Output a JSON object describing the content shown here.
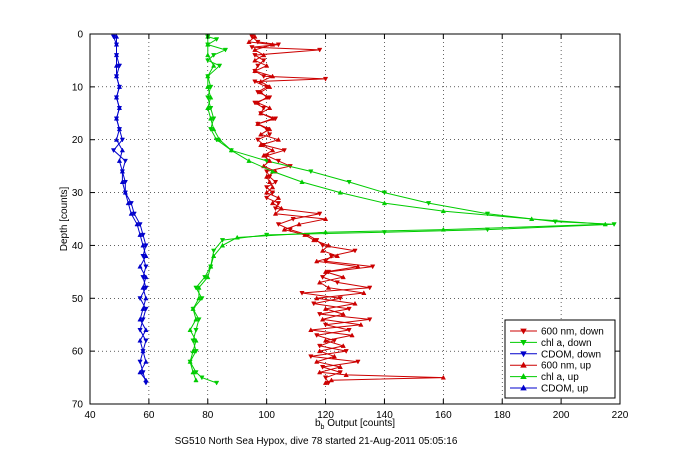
{
  "chart_data": {
    "type": "line",
    "title": "",
    "xlabel": "b_b Output [counts]",
    "xlabel_main": "b",
    "xlabel_sub": "b",
    "xlabel_rest": " Output [counts]",
    "ylabel": "Depth [counts]",
    "caption": "SG510 North Sea Hypox, dive 78 started 21-Aug-2011 05:05:16",
    "xlim": [
      40,
      220
    ],
    "ylim": [
      0,
      70
    ],
    "y_reversed": true,
    "grid": true,
    "legend_position": "bottom-right",
    "x_ticks": [
      "40",
      "60",
      "80",
      "100",
      "120",
      "140",
      "160",
      "180",
      "200",
      "220"
    ],
    "y_ticks": [
      "0",
      "10",
      "20",
      "30",
      "40",
      "50",
      "60",
      "70"
    ],
    "series": [
      {
        "name": "600 nm, down",
        "color": "#cc0000",
        "marker": "triangle-down",
        "points": [
          [
            95,
            0.5
          ],
          [
            97,
            1.5
          ],
          [
            104,
            2
          ],
          [
            95,
            2.5
          ],
          [
            118,
            3
          ],
          [
            96,
            4
          ],
          [
            99,
            5
          ],
          [
            97,
            6
          ],
          [
            96,
            7
          ],
          [
            99,
            8
          ],
          [
            120,
            8.5
          ],
          [
            96,
            9
          ],
          [
            100,
            10
          ],
          [
            97,
            11
          ],
          [
            101,
            12
          ],
          [
            96,
            13
          ],
          [
            99,
            14
          ],
          [
            98,
            15
          ],
          [
            103,
            16
          ],
          [
            97,
            17
          ],
          [
            100,
            18
          ],
          [
            101,
            19
          ],
          [
            97,
            20
          ],
          [
            99,
            21
          ],
          [
            106,
            22
          ],
          [
            100,
            23
          ],
          [
            104,
            24
          ],
          [
            108,
            25
          ],
          [
            100,
            26
          ],
          [
            101,
            27
          ],
          [
            103,
            28
          ],
          [
            100,
            29
          ],
          [
            102,
            30
          ],
          [
            100,
            31
          ],
          [
            104,
            32
          ],
          [
            103,
            33
          ],
          [
            118,
            34
          ],
          [
            109,
            35
          ],
          [
            104,
            36
          ],
          [
            108,
            37
          ],
          [
            114,
            38
          ],
          [
            117,
            39
          ],
          [
            119,
            40
          ],
          [
            130,
            41
          ],
          [
            122,
            42
          ],
          [
            120,
            43
          ],
          [
            136,
            44
          ],
          [
            121,
            45
          ],
          [
            119,
            46
          ],
          [
            124,
            47
          ],
          [
            135,
            48
          ],
          [
            112,
            49
          ],
          [
            125,
            50
          ],
          [
            116,
            51
          ],
          [
            128,
            52
          ],
          [
            118,
            53
          ],
          [
            135,
            54
          ],
          [
            120,
            55
          ],
          [
            128,
            56
          ],
          [
            117,
            57
          ],
          [
            123,
            58
          ],
          [
            118,
            59
          ],
          [
            127,
            60
          ],
          [
            115,
            61
          ],
          [
            131,
            62
          ],
          [
            119,
            63
          ],
          [
            125,
            64
          ],
          [
            120,
            65
          ],
          [
            121,
            66
          ]
        ]
      },
      {
        "name": "chl a, down",
        "color": "#00cc00",
        "marker": "triangle-down",
        "points": [
          [
            80,
            0.5
          ],
          [
            83,
            1
          ],
          [
            80,
            2
          ],
          [
            86,
            3
          ],
          [
            82,
            4
          ],
          [
            80,
            5
          ],
          [
            84,
            6
          ],
          [
            80,
            8
          ],
          [
            81,
            10
          ],
          [
            80,
            12
          ],
          [
            81,
            14
          ],
          [
            82,
            16
          ],
          [
            81,
            18
          ],
          [
            83,
            20
          ],
          [
            88,
            22
          ],
          [
            100,
            24
          ],
          [
            115,
            26
          ],
          [
            128,
            28
          ],
          [
            140,
            30
          ],
          [
            155,
            32
          ],
          [
            175,
            34
          ],
          [
            198,
            35.5
          ],
          [
            218,
            36
          ],
          [
            175,
            37
          ],
          [
            140,
            37.5
          ],
          [
            100,
            38
          ],
          [
            85,
            39
          ],
          [
            82,
            41
          ],
          [
            81,
            44
          ],
          [
            79,
            46
          ],
          [
            76,
            48
          ],
          [
            78,
            50
          ],
          [
            75,
            52
          ],
          [
            77,
            54
          ],
          [
            76,
            56
          ],
          [
            75,
            58
          ],
          [
            76,
            60
          ],
          [
            74,
            62
          ],
          [
            76,
            64
          ],
          [
            78,
            65
          ],
          [
            83,
            66
          ]
        ]
      },
      {
        "name": "CDOM, down",
        "color": "#0000cc",
        "marker": "triangle-down",
        "points": [
          [
            48,
            0.5
          ],
          [
            49,
            2
          ],
          [
            49,
            4
          ],
          [
            50,
            6
          ],
          [
            49,
            8
          ],
          [
            50,
            10
          ],
          [
            49,
            12
          ],
          [
            50,
            14
          ],
          [
            49,
            16
          ],
          [
            50,
            18
          ],
          [
            51,
            20
          ],
          [
            48,
            22
          ],
          [
            52,
            24
          ],
          [
            51,
            26
          ],
          [
            52,
            28
          ],
          [
            52,
            30
          ],
          [
            54,
            32
          ],
          [
            55,
            34
          ],
          [
            57,
            36
          ],
          [
            58,
            38
          ],
          [
            59,
            40
          ],
          [
            58,
            42
          ],
          [
            59,
            44
          ],
          [
            58,
            46
          ],
          [
            59,
            48
          ],
          [
            57,
            50
          ],
          [
            59,
            52
          ],
          [
            58,
            54
          ],
          [
            57,
            56
          ],
          [
            59,
            58
          ],
          [
            58,
            60
          ],
          [
            57,
            62
          ],
          [
            58,
            64
          ],
          [
            59,
            66
          ]
        ]
      },
      {
        "name": "600 nm, up",
        "color": "#cc0000",
        "marker": "triangle-up",
        "points": [
          [
            120,
            66
          ],
          [
            122,
            65.5
          ],
          [
            160,
            65
          ],
          [
            127,
            64.5
          ],
          [
            118,
            64
          ],
          [
            125,
            63
          ],
          [
            117,
            62
          ],
          [
            123,
            61
          ],
          [
            118,
            60
          ],
          [
            126,
            59
          ],
          [
            120,
            58
          ],
          [
            129,
            57
          ],
          [
            115,
            56
          ],
          [
            132,
            55
          ],
          [
            119,
            54
          ],
          [
            126,
            53
          ],
          [
            120,
            52
          ],
          [
            130,
            51
          ],
          [
            117,
            50
          ],
          [
            133,
            49
          ],
          [
            121,
            48
          ],
          [
            118,
            47
          ],
          [
            126,
            46
          ],
          [
            120,
            45
          ],
          [
            131,
            44
          ],
          [
            117,
            43
          ],
          [
            124,
            42
          ],
          [
            119,
            41
          ],
          [
            121,
            40
          ],
          [
            116,
            39
          ],
          [
            113,
            38
          ],
          [
            106,
            37
          ],
          [
            111,
            36
          ],
          [
            120,
            35
          ],
          [
            103,
            34
          ],
          [
            105,
            33
          ],
          [
            102,
            32
          ],
          [
            104,
            31
          ],
          [
            100,
            30
          ],
          [
            102,
            29
          ],
          [
            101,
            28
          ],
          [
            100,
            27
          ],
          [
            103,
            26
          ],
          [
            99,
            25
          ],
          [
            101,
            24
          ],
          [
            99,
            23
          ],
          [
            102,
            22
          ],
          [
            98,
            21
          ],
          [
            104,
            20
          ],
          [
            98,
            19
          ],
          [
            101,
            18
          ],
          [
            97,
            17
          ],
          [
            102,
            16
          ],
          [
            98,
            15
          ],
          [
            101,
            14
          ],
          [
            97,
            13
          ],
          [
            100,
            12
          ],
          [
            98,
            11
          ],
          [
            101,
            10
          ],
          [
            98,
            9
          ],
          [
            102,
            8
          ],
          [
            96,
            7
          ],
          [
            100,
            6
          ],
          [
            96,
            5
          ],
          [
            99,
            4
          ],
          [
            96,
            3
          ],
          [
            102,
            2
          ],
          [
            94,
            1.5
          ],
          [
            96,
            0.5
          ]
        ]
      },
      {
        "name": "chl a, up",
        "color": "#00cc00",
        "marker": "triangle-up",
        "points": [
          [
            76,
            65.5
          ],
          [
            75,
            64
          ],
          [
            74,
            62
          ],
          [
            75,
            60
          ],
          [
            76,
            58
          ],
          [
            74,
            56
          ],
          [
            76,
            54
          ],
          [
            75,
            52
          ],
          [
            77,
            50
          ],
          [
            77,
            48
          ],
          [
            80,
            46
          ],
          [
            81,
            44
          ],
          [
            82,
            42
          ],
          [
            85,
            40
          ],
          [
            90,
            38.5
          ],
          [
            120,
            37.5
          ],
          [
            160,
            37
          ],
          [
            215,
            36
          ],
          [
            190,
            35
          ],
          [
            160,
            33.5
          ],
          [
            140,
            32
          ],
          [
            125,
            30
          ],
          [
            112,
            28
          ],
          [
            102,
            26
          ],
          [
            94,
            24
          ],
          [
            88,
            22
          ],
          [
            84,
            20
          ],
          [
            82,
            18
          ],
          [
            81,
            16
          ],
          [
            80,
            14
          ],
          [
            81,
            12
          ],
          [
            80,
            10
          ],
          [
            80,
            8
          ],
          [
            82,
            6
          ],
          [
            80,
            4
          ],
          [
            80,
            2
          ],
          [
            80,
            0.5
          ]
        ]
      },
      {
        "name": "CDOM, up",
        "color": "#0000cc",
        "marker": "triangle-up",
        "points": [
          [
            59,
            65.5
          ],
          [
            57,
            64
          ],
          [
            59,
            62
          ],
          [
            58,
            60
          ],
          [
            57,
            58
          ],
          [
            59,
            56
          ],
          [
            57,
            54
          ],
          [
            58,
            52
          ],
          [
            59,
            50
          ],
          [
            58,
            48
          ],
          [
            59,
            46
          ],
          [
            57,
            44
          ],
          [
            59,
            42
          ],
          [
            58,
            40
          ],
          [
            57,
            38
          ],
          [
            56,
            36
          ],
          [
            54,
            34
          ],
          [
            53,
            32
          ],
          [
            52,
            30
          ],
          [
            51,
            28
          ],
          [
            51,
            26
          ],
          [
            50,
            24
          ],
          [
            51,
            22
          ],
          [
            49,
            20
          ],
          [
            50,
            18
          ],
          [
            49,
            16
          ],
          [
            50,
            14
          ],
          [
            49,
            12
          ],
          [
            50,
            10
          ],
          [
            49,
            8
          ],
          [
            49,
            6
          ],
          [
            49,
            4
          ],
          [
            49,
            2
          ],
          [
            49,
            0.5
          ]
        ]
      }
    ]
  }
}
